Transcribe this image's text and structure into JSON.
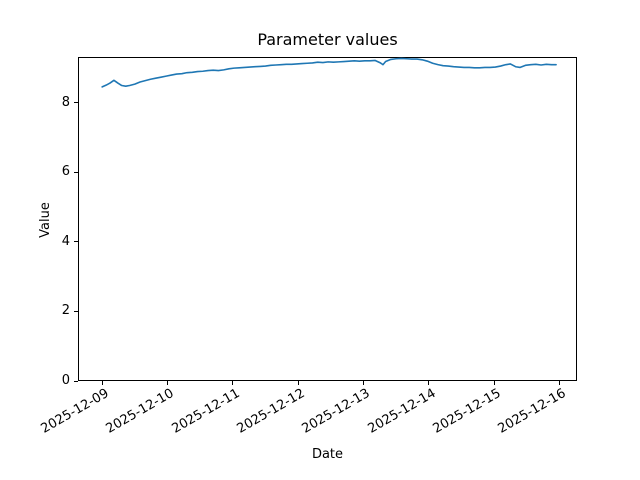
{
  "figure": {
    "background": "#ffffff",
    "text_color": "#000000",
    "spine_color": "#000000"
  },
  "chart_data": {
    "type": "line",
    "title": "Parameter values",
    "xlabel": "Date",
    "ylabel": "Value",
    "grid": false,
    "legend_position": null,
    "x_unit": "days since 2025-12-09",
    "x_ticks": [
      0,
      1,
      2,
      3,
      4,
      5,
      6,
      7
    ],
    "x_tick_labels": [
      "2025-12-09",
      "2025-12-10",
      "2025-12-11",
      "2025-12-12",
      "2025-12-13",
      "2025-12-14",
      "2025-12-15",
      "2025-12-16"
    ],
    "y_ticks": [
      0,
      2,
      4,
      6,
      8
    ],
    "y_tick_labels": [
      "0",
      "2",
      "4",
      "6",
      "8"
    ],
    "xlim": [
      -0.37,
      7.27
    ],
    "ylim": [
      0,
      9.32
    ],
    "series": [
      {
        "name": "parameter-values",
        "color": "#1f77b4",
        "line_width": 1.6,
        "x": [
          0.0,
          0.06,
          0.12,
          0.18,
          0.24,
          0.3,
          0.36,
          0.42,
          0.5,
          0.58,
          0.66,
          0.74,
          0.82,
          0.9,
          0.98,
          1.06,
          1.14,
          1.22,
          1.3,
          1.38,
          1.46,
          1.54,
          1.62,
          1.7,
          1.78,
          1.86,
          1.94,
          2.02,
          2.1,
          2.18,
          2.26,
          2.34,
          2.42,
          2.5,
          2.58,
          2.66,
          2.74,
          2.82,
          2.9,
          2.98,
          3.06,
          3.14,
          3.22,
          3.3,
          3.38,
          3.46,
          3.54,
          3.62,
          3.7,
          3.78,
          3.86,
          3.94,
          4.02,
          4.1,
          4.18,
          4.26,
          4.3,
          4.34,
          4.42,
          4.5,
          4.58,
          4.66,
          4.74,
          4.82,
          4.9,
          4.98,
          5.06,
          5.14,
          5.22,
          5.3,
          5.38,
          5.46,
          5.54,
          5.62,
          5.7,
          5.78,
          5.86,
          5.94,
          6.02,
          6.1,
          6.18,
          6.25,
          6.33,
          6.4,
          6.48,
          6.56,
          6.64,
          6.72,
          6.8,
          6.88,
          6.95
        ],
        "values": [
          8.46,
          8.51,
          8.57,
          8.65,
          8.57,
          8.5,
          8.48,
          8.5,
          8.54,
          8.6,
          8.64,
          8.68,
          8.71,
          8.74,
          8.77,
          8.8,
          8.83,
          8.84,
          8.87,
          8.88,
          8.9,
          8.91,
          8.93,
          8.94,
          8.93,
          8.95,
          8.98,
          9.0,
          9.01,
          9.02,
          9.03,
          9.04,
          9.05,
          9.06,
          9.08,
          9.09,
          9.1,
          9.11,
          9.11,
          9.12,
          9.13,
          9.14,
          9.15,
          9.17,
          9.16,
          9.18,
          9.17,
          9.18,
          9.19,
          9.2,
          9.21,
          9.2,
          9.21,
          9.21,
          9.22,
          9.15,
          9.1,
          9.19,
          9.25,
          9.27,
          9.28,
          9.27,
          9.26,
          9.26,
          9.24,
          9.2,
          9.14,
          9.1,
          9.07,
          9.06,
          9.04,
          9.03,
          9.02,
          9.02,
          9.01,
          9.01,
          9.02,
          9.02,
          9.03,
          9.06,
          9.1,
          9.12,
          9.04,
          9.02,
          9.08,
          9.1,
          9.11,
          9.09,
          9.11,
          9.1,
          9.1
        ]
      }
    ]
  }
}
